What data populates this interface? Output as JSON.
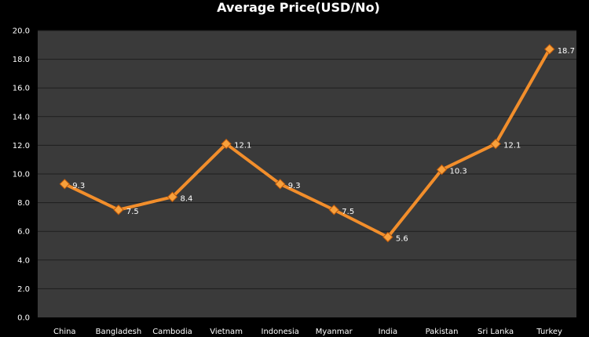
{
  "chart_data": {
    "type": "line",
    "title": "Average Price(USD/No)",
    "xlabel": "",
    "ylabel": "",
    "categories": [
      "China",
      "Bangladesh",
      "Cambodia",
      "Vietnam",
      "Indonesia",
      "Myanmar",
      "India",
      "Pakistan",
      "Sri Lanka",
      "Turkey"
    ],
    "series": [
      {
        "values": [
          9.3,
          7.5,
          8.4,
          12.1,
          9.3,
          7.5,
          5.6,
          10.3,
          12.1,
          18.7
        ],
        "labels": [
          "9.3",
          "7.5",
          "8.4",
          "12.1",
          "9.3",
          "7.5",
          "5.6",
          "10.3",
          "12.1",
          "18.7"
        ]
      }
    ],
    "ylim": [
      0,
      20
    ],
    "yticks": [
      "0.0",
      "2.0",
      "4.0",
      "6.0",
      "8.0",
      "10.0",
      "12.0",
      "14.0",
      "16.0",
      "18.0",
      "20.0"
    ],
    "ytick_step": 2,
    "grid": true,
    "legend": "none",
    "colors": {
      "line": "#F28E2B",
      "marker_fill": "#F7A03C",
      "marker_stroke": "#C05A0A",
      "plot_background": "#3A3A3A",
      "page_background": "#000000",
      "gridline": "#1E1E1E",
      "text": "#FFFFFF"
    },
    "marker": "diamond"
  }
}
